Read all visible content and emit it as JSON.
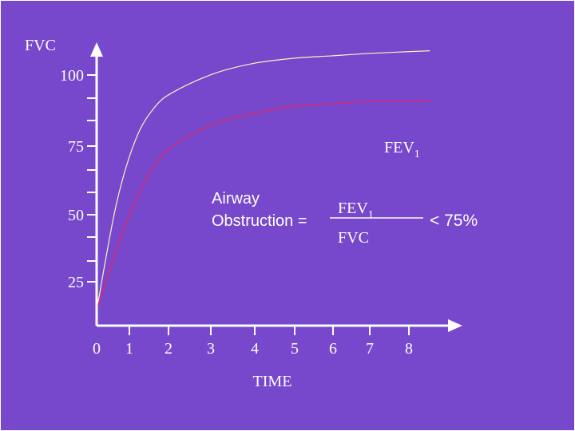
{
  "chart_data": {
    "type": "line",
    "title": "",
    "ylabel": "FVC",
    "xlabel": "TIME",
    "x_ticks": [
      0,
      1,
      2,
      3,
      4,
      5,
      6,
      7,
      8
    ],
    "y_ticks": [
      25,
      50,
      75,
      100
    ],
    "xlim": [
      0,
      9
    ],
    "ylim": [
      0,
      113
    ],
    "grid": false,
    "series": [
      {
        "name": "",
        "color": "#fff3c0",
        "x": [
          0,
          0.5,
          1,
          1.5,
          2,
          3,
          4,
          5,
          6,
          7,
          8.5
        ],
        "y": [
          6,
          48,
          74,
          87,
          93,
          100,
          104,
          106,
          107,
          108,
          109
        ]
      },
      {
        "name": "FEV1",
        "color": "#b8338f",
        "x": [
          0,
          0.5,
          1,
          1.5,
          2,
          3,
          4,
          5,
          6,
          7,
          8.5
        ],
        "y": [
          6,
          30,
          50,
          64,
          72,
          80,
          84,
          87,
          88,
          89,
          89
        ]
      }
    ],
    "annotations": {
      "fev_label_main": "FEV",
      "fev_label_sub": "1",
      "airway_line1": "Airway",
      "airway_line2": "Obstruction =",
      "frac_num_main": "FEV",
      "frac_num_sub": "1",
      "frac_den": "FVC",
      "result": "< 75%"
    }
  },
  "colors": {
    "background": "#7747cc",
    "axis": "#ffffff",
    "fvc_curve": "#fff3c0",
    "fev1_curve": "#b8338f"
  }
}
